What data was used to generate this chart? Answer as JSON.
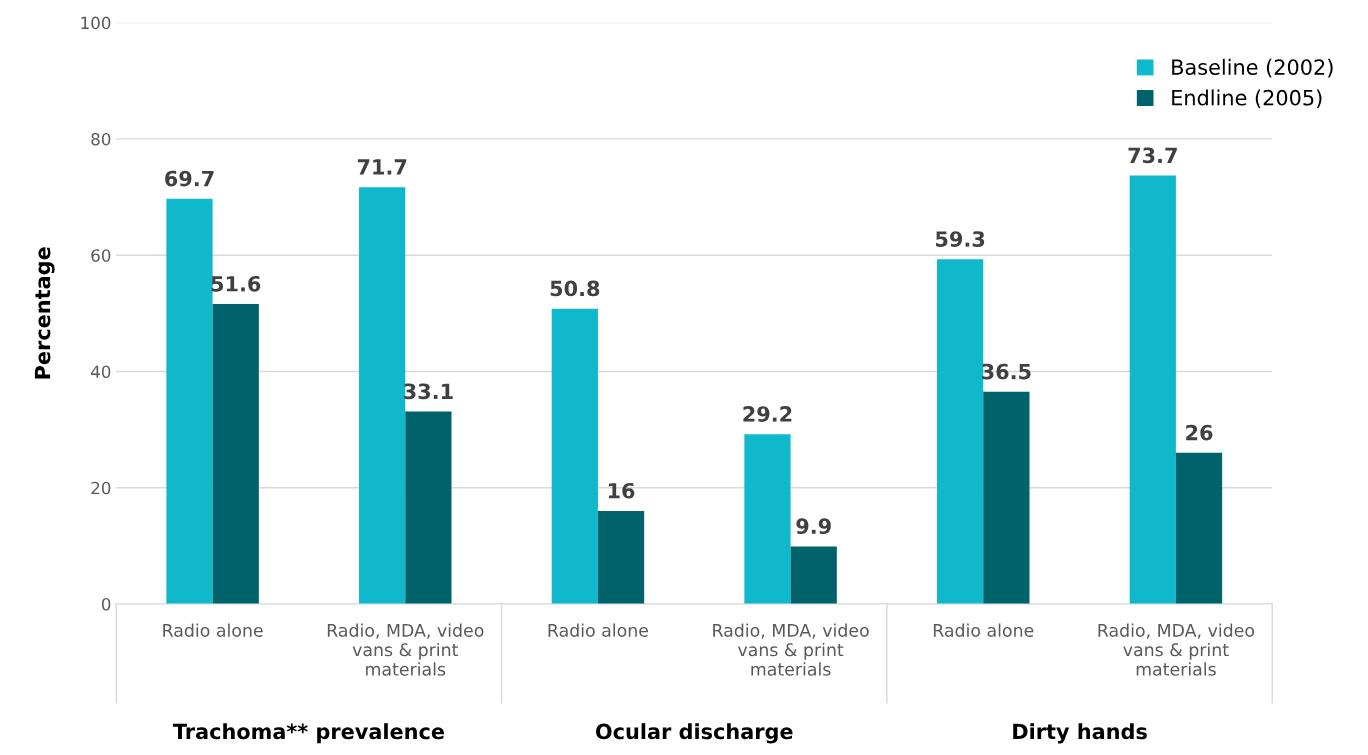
{
  "chart_data": {
    "type": "bar",
    "ylabel": "Percentage",
    "categories": [
      "Radio alone",
      "Radio, MDA, video\nvans & print\nmaterials",
      "Radio alone",
      "Radio, MDA, video\nvans & print\nmaterials",
      "Radio alone",
      "Radio, MDA, video\nvans & print\nmaterials"
    ],
    "series": [
      {
        "name": "Baseline (2002)",
        "color": "#10b8cc",
        "values": [
          69.7,
          71.7,
          50.8,
          29.2,
          59.3,
          73.7
        ]
      },
      {
        "name": "Endline (2005)",
        "color": "#00626b",
        "values": [
          51.6,
          33.1,
          16,
          9.9,
          36.5,
          26
        ]
      }
    ],
    "annotations": [
      "Trachoma** prevalence",
      "Ocular discharge",
      "Dirty hands"
    ],
    "ylim": [
      0,
      100
    ],
    "yticks": [
      0,
      20,
      40,
      60,
      80,
      100
    ],
    "grid": "y",
    "legend": "top right",
    "data_labels": true
  }
}
